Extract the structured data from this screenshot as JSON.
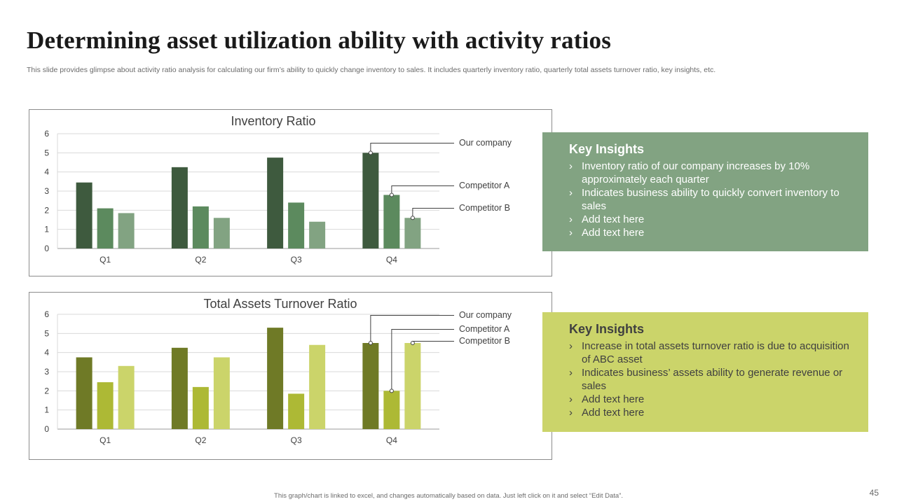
{
  "title": "Determining asset utilization  ability with activity ratios",
  "subtitle": "This slide provides glimpse about activity ratio analysis for calculating our firm’s ability to quickly change inventory to sales. It includes quarterly inventory ratio, quarterly total assets turnover ratio, key insights, etc.",
  "chart_data": [
    {
      "type": "bar",
      "title": "Inventory Ratio",
      "categories": [
        "Q1",
        "Q2",
        "Q3",
        "Q4"
      ],
      "ylim": [
        0,
        6
      ],
      "yticks": [
        0,
        1,
        2,
        3,
        4,
        5,
        6
      ],
      "grid": true,
      "series": [
        {
          "name": "Our company",
          "values": [
            3.45,
            4.25,
            4.75,
            5.0
          ],
          "color": "#3e5a3e"
        },
        {
          "name": "Competitor A",
          "values": [
            2.1,
            2.2,
            2.4,
            2.8
          ],
          "color": "#5c8a5e"
        },
        {
          "name": "Competitor B",
          "values": [
            1.85,
            1.6,
            1.4,
            1.6
          ],
          "color": "#82a382"
        }
      ],
      "legend_callouts": "Q4",
      "legend_placement": "right"
    },
    {
      "type": "bar",
      "title": "Total Assets Turnover Ratio",
      "categories": [
        "Q1",
        "Q2",
        "Q3",
        "Q4"
      ],
      "ylim": [
        0,
        6
      ],
      "yticks": [
        0,
        1,
        2,
        3,
        4,
        5,
        6
      ],
      "grid": true,
      "series": [
        {
          "name": "Our company",
          "values": [
            3.75,
            4.25,
            5.3,
            4.5
          ],
          "color": "#6f7a26"
        },
        {
          "name": "Competitor A",
          "values": [
            2.45,
            2.2,
            1.85,
            2.0
          ],
          "color": "#adb935"
        },
        {
          "name": "Competitor B",
          "values": [
            3.3,
            3.75,
            4.4,
            4.5
          ],
          "color": "#cbd46a"
        }
      ],
      "legend_callouts": "Q4",
      "legend_placement": "right"
    }
  ],
  "insights": [
    {
      "heading": "Key Insights",
      "bullets": [
        "Inventory  ratio of our company increases by 10% approximately each quarter",
        "Indicates business ability to quickly convert inventory to sales",
        "Add text here",
        "Add text here"
      ]
    },
    {
      "heading": "Key Insights",
      "bullets": [
        "Increase  in total assets turnover  ratio is due to acquisition of ABC asset",
        "Indicates business’ assets ability to generate revenue or sales",
        "Add text here",
        "Add text here"
      ]
    }
  ],
  "footnote": "This graph/chart is linked to excel, and changes automatically based on data. Just left click on it and select “Edit Data”.",
  "page_number": "45"
}
